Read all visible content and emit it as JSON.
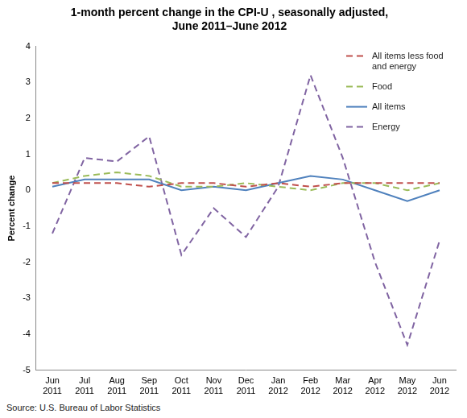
{
  "chart_data": {
    "type": "line",
    "title": [
      "1-month percent change in the CPI-U , seasonally adjusted,",
      "June 2011–June 2012"
    ],
    "y_label": "Percent change",
    "annotations": [
      "Source: U.S. Bureau of Labor Statistics"
    ],
    "categories": [
      "Jun 2011",
      "Jul 2011",
      "Aug 2011",
      "Sep 2011",
      "Oct 2011",
      "Nov 2011",
      "Dec 2011",
      "Jan 2012",
      "Feb 2012",
      "Mar 2012",
      "Apr 2012",
      "May 2012",
      "Jun 2012"
    ],
    "series": [
      {
        "name": "All items less food and energy",
        "color": "#c0504d",
        "line_style": "dashed",
        "values": [
          0.2,
          0.2,
          0.2,
          0.1,
          0.2,
          0.2,
          0.1,
          0.2,
          0.1,
          0.2,
          0.2,
          0.2,
          0.2
        ]
      },
      {
        "name": "Food",
        "color": "#9bbb59",
        "line_style": "dashed",
        "values": [
          0.2,
          0.4,
          0.5,
          0.4,
          0.1,
          0.1,
          0.2,
          0.1,
          0.0,
          0.2,
          0.2,
          0.0,
          0.2
        ]
      },
      {
        "name": "All items",
        "color": "#4f81bd",
        "line_style": "solid",
        "values": [
          0.1,
          0.3,
          0.3,
          0.3,
          0.0,
          0.1,
          0.0,
          0.2,
          0.4,
          0.3,
          0.0,
          -0.3,
          0.0
        ]
      },
      {
        "name": "Energy",
        "color": "#8064a2",
        "line_style": "dashed",
        "values": [
          -1.2,
          0.9,
          0.8,
          1.5,
          -1.8,
          -0.5,
          -1.3,
          0.1,
          3.2,
          0.9,
          -2.0,
          -4.3,
          -1.4
        ]
      }
    ],
    "ylim": [
      -5,
      4
    ],
    "yticks": [
      -5,
      -4,
      -3,
      -2,
      -1,
      0,
      1,
      2,
      3,
      4
    ],
    "grid": false,
    "legend": "top-right"
  }
}
